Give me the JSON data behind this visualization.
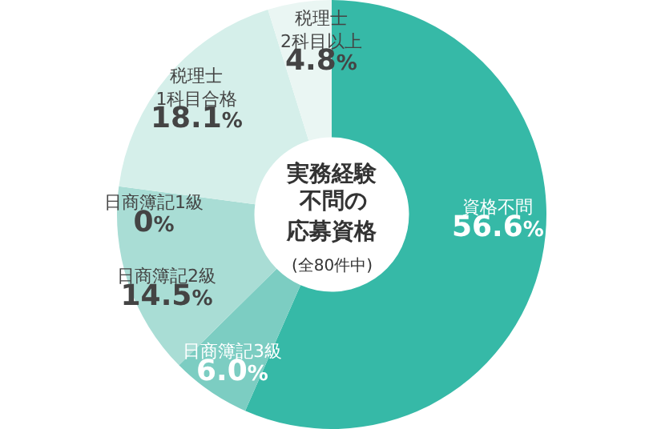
{
  "chart_data": {
    "type": "donut",
    "title": "実務経験不問の応募資格",
    "subtitle": "(全80件中)",
    "categories": [
      "資格不問",
      "日商簿記3級",
      "日商簿記2級",
      "日商簿記1級",
      "税理士\n1科目合格",
      "税理士\n2科目以上"
    ],
    "values": [
      56.6,
      6.0,
      14.5,
      0,
      18.1,
      4.8
    ],
    "value_labels": [
      "56.6%",
      "6.0%",
      "14.5%",
      "0%",
      "18.1%",
      "4.8%"
    ],
    "colors": [
      "#36b9a7",
      "#7ccdc2",
      "#a9ddd5",
      "#c8e9e3",
      "#d5efea",
      "#eaf6f3"
    ],
    "legend": false
  }
}
